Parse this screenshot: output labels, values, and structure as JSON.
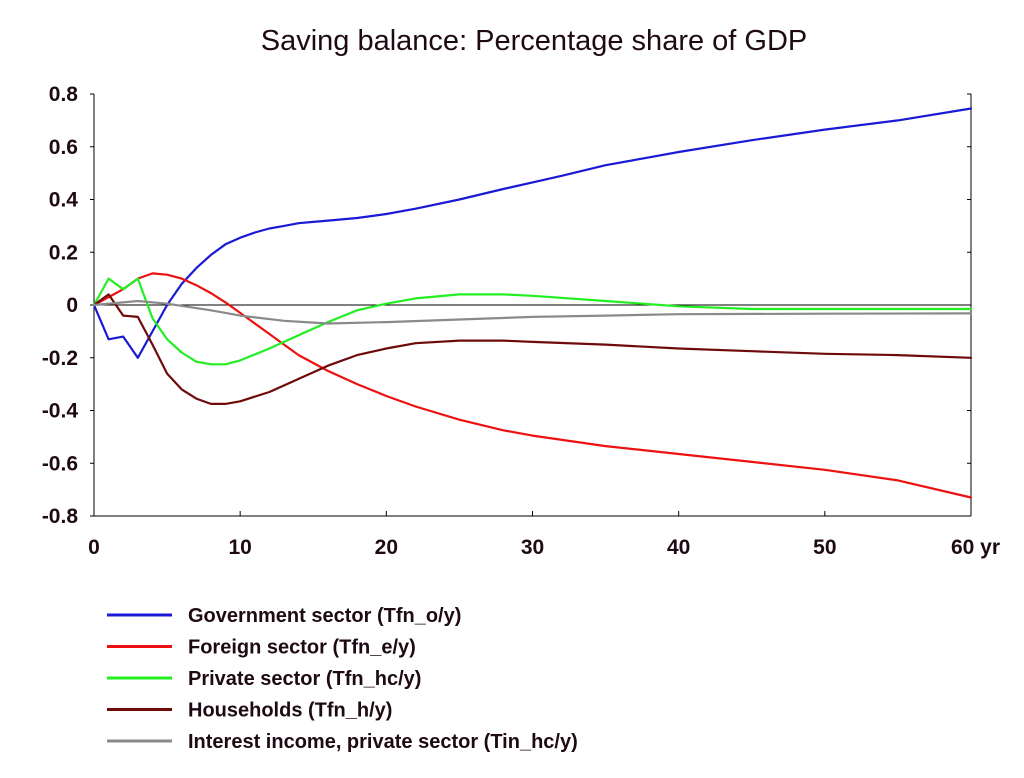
{
  "chart_data": {
    "type": "line",
    "title": "Saving balance: Percentage share of GDP",
    "xlabel": "",
    "ylabel": "",
    "xlim": [
      0,
      60
    ],
    "ylim": [
      -0.8,
      0.8
    ],
    "x_ticks": [
      0,
      10,
      20,
      30,
      40,
      50,
      60
    ],
    "x_tick_labels": [
      "0",
      "10",
      "20",
      "30",
      "40",
      "50",
      "60 yr"
    ],
    "y_ticks": [
      0.8,
      0.6,
      0.4,
      0.2,
      0,
      -0.2,
      -0.4,
      -0.6,
      -0.8
    ],
    "y_tick_labels": [
      "0.8",
      "0.6",
      "0.4",
      "0.2",
      "0",
      "-0.2",
      "-0.4",
      "-0.6",
      "-0.8"
    ],
    "zero_line": true,
    "grid": false,
    "legend_position": "bottom",
    "series": [
      {
        "name": "Government sector (Tfn_o/y)",
        "color": "#1a1ad6",
        "points": [
          [
            0,
            0
          ],
          [
            1,
            -0.13
          ],
          [
            2,
            -0.12
          ],
          [
            3,
            -0.2
          ],
          [
            4,
            -0.1
          ],
          [
            5,
            0
          ],
          [
            6,
            0.08
          ],
          [
            7,
            0.14
          ],
          [
            8,
            0.19
          ],
          [
            9,
            0.23
          ],
          [
            10,
            0.255
          ],
          [
            11,
            0.275
          ],
          [
            12,
            0.29
          ],
          [
            13,
            0.3
          ],
          [
            14,
            0.31
          ],
          [
            15,
            0.315
          ],
          [
            16,
            0.32
          ],
          [
            18,
            0.33
          ],
          [
            20,
            0.345
          ],
          [
            22,
            0.365
          ],
          [
            25,
            0.4
          ],
          [
            28,
            0.44
          ],
          [
            30,
            0.465
          ],
          [
            32,
            0.49
          ],
          [
            35,
            0.53
          ],
          [
            38,
            0.56
          ],
          [
            40,
            0.58
          ],
          [
            45,
            0.625
          ],
          [
            50,
            0.665
          ],
          [
            55,
            0.7
          ],
          [
            60,
            0.745
          ]
        ]
      },
      {
        "name": "Foreign sector (Tfn_e/y)",
        "color": "#ee1111",
        "points": [
          [
            0,
            0
          ],
          [
            1,
            0.03
          ],
          [
            2,
            0.06
          ],
          [
            3,
            0.1
          ],
          [
            4,
            0.12
          ],
          [
            5,
            0.115
          ],
          [
            6,
            0.1
          ],
          [
            7,
            0.075
          ],
          [
            8,
            0.045
          ],
          [
            9,
            0.01
          ],
          [
            10,
            -0.03
          ],
          [
            12,
            -0.11
          ],
          [
            14,
            -0.19
          ],
          [
            16,
            -0.25
          ],
          [
            18,
            -0.3
          ],
          [
            20,
            -0.345
          ],
          [
            22,
            -0.385
          ],
          [
            25,
            -0.435
          ],
          [
            28,
            -0.475
          ],
          [
            30,
            -0.495
          ],
          [
            35,
            -0.535
          ],
          [
            40,
            -0.565
          ],
          [
            45,
            -0.595
          ],
          [
            50,
            -0.625
          ],
          [
            55,
            -0.665
          ],
          [
            60,
            -0.73
          ]
        ]
      },
      {
        "name": "Private sector (Tfn_hc/y)",
        "color": "#22ee22",
        "points": [
          [
            0,
            0
          ],
          [
            1,
            0.1
          ],
          [
            2,
            0.06
          ],
          [
            3,
            0.1
          ],
          [
            4,
            -0.05
          ],
          [
            5,
            -0.13
          ],
          [
            6,
            -0.18
          ],
          [
            7,
            -0.215
          ],
          [
            8,
            -0.225
          ],
          [
            9,
            -0.225
          ],
          [
            10,
            -0.21
          ],
          [
            12,
            -0.165
          ],
          [
            14,
            -0.115
          ],
          [
            16,
            -0.065
          ],
          [
            18,
            -0.02
          ],
          [
            20,
            0.005
          ],
          [
            22,
            0.025
          ],
          [
            25,
            0.04
          ],
          [
            28,
            0.04
          ],
          [
            30,
            0.035
          ],
          [
            35,
            0.015
          ],
          [
            40,
            -0.005
          ],
          [
            45,
            -0.015
          ],
          [
            50,
            -0.015
          ],
          [
            55,
            -0.015
          ],
          [
            60,
            -0.015
          ]
        ]
      },
      {
        "name": "Households (Tfn_h/y)",
        "color": "#6e0a0a",
        "points": [
          [
            0,
            0
          ],
          [
            1,
            0.04
          ],
          [
            2,
            -0.04
          ],
          [
            3,
            -0.045
          ],
          [
            4,
            -0.15
          ],
          [
            5,
            -0.26
          ],
          [
            6,
            -0.32
          ],
          [
            7,
            -0.355
          ],
          [
            8,
            -0.375
          ],
          [
            9,
            -0.375
          ],
          [
            10,
            -0.365
          ],
          [
            12,
            -0.33
          ],
          [
            14,
            -0.28
          ],
          [
            16,
            -0.23
          ],
          [
            18,
            -0.19
          ],
          [
            20,
            -0.165
          ],
          [
            22,
            -0.145
          ],
          [
            25,
            -0.135
          ],
          [
            28,
            -0.135
          ],
          [
            30,
            -0.14
          ],
          [
            35,
            -0.15
          ],
          [
            40,
            -0.165
          ],
          [
            45,
            -0.175
          ],
          [
            50,
            -0.185
          ],
          [
            55,
            -0.19
          ],
          [
            60,
            -0.2
          ]
        ]
      },
      {
        "name": "Interest income, private sector (Tin_hc/y)",
        "color": "#8a8a8a",
        "points": [
          [
            0,
            0
          ],
          [
            2,
            0.01
          ],
          [
            3,
            0.015
          ],
          [
            5,
            0.005
          ],
          [
            8,
            -0.02
          ],
          [
            10,
            -0.04
          ],
          [
            13,
            -0.06
          ],
          [
            16,
            -0.07
          ],
          [
            20,
            -0.065
          ],
          [
            25,
            -0.055
          ],
          [
            30,
            -0.045
          ],
          [
            35,
            -0.04
          ],
          [
            40,
            -0.035
          ],
          [
            50,
            -0.033
          ],
          [
            60,
            -0.032
          ]
        ]
      }
    ]
  }
}
